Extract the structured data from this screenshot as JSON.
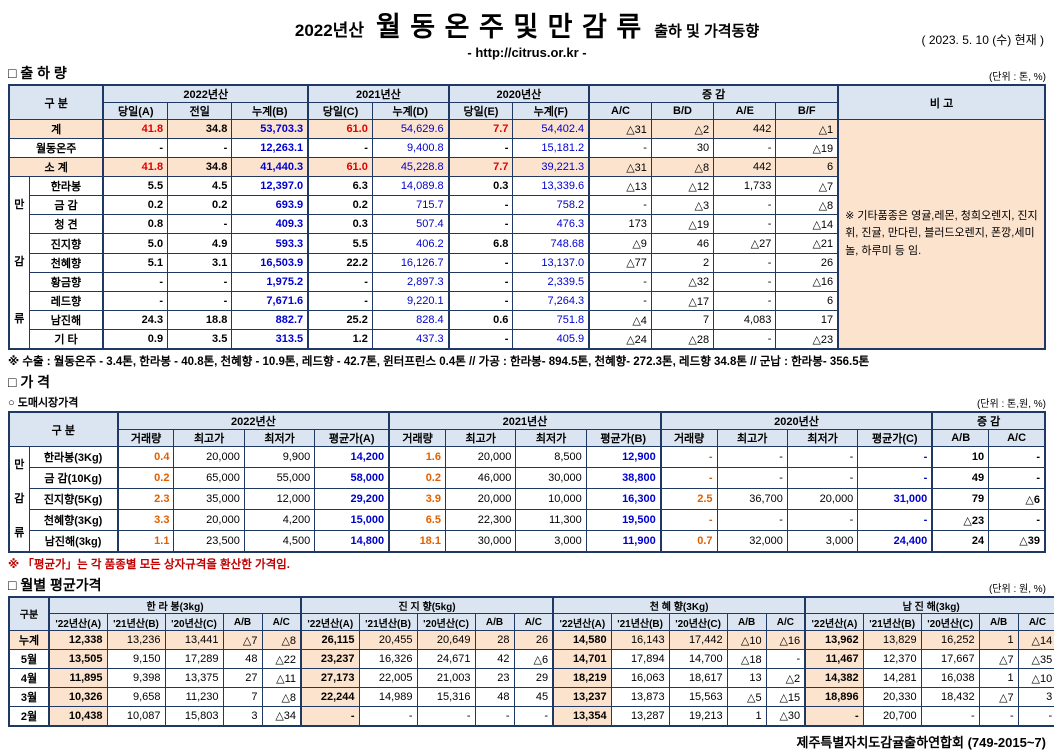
{
  "header": {
    "year_prefix": "2022년산",
    "title": "월 동 온 주 및 만 감 류",
    "subtitle": "출하 및 가격동향",
    "url": "- http://citrus.or.kr -",
    "as_of": "( 2023.  5.  10 (수) 현재 )"
  },
  "shipment": {
    "section": "□ 출 하 량",
    "unit": "(단위 : 톤, %)",
    "head": {
      "gubun": "구        분",
      "y2022": "2022년산",
      "y2021": "2021년산",
      "y2020": "2020년산",
      "incdec": "증            감",
      "note": "비  고",
      "subs": [
        "당일(A)",
        "전일",
        "누계(B)",
        "당일(C)",
        "누계(D)",
        "당일(E)",
        "누계(F)",
        "A/C",
        "B/D",
        "A/E",
        "B/F"
      ]
    },
    "group_label": "만감류",
    "rows": [
      {
        "label": "계",
        "kind": "total",
        "v": [
          "41.8",
          "34.8",
          "53,703.3",
          "61.0",
          "54,629.6",
          "7.7",
          "54,402.4",
          "△31",
          "△2",
          "442",
          "△1"
        ]
      },
      {
        "label": "월동온주",
        "kind": "plain",
        "v": [
          "-",
          "-",
          "12,263.1",
          "-",
          "9,400.8",
          "-",
          "15,181.2",
          "-",
          "30",
          "-",
          "△19"
        ]
      },
      {
        "label": "소  계",
        "kind": "total",
        "v": [
          "41.8",
          "34.8",
          "41,440.3",
          "61.0",
          "45,228.8",
          "7.7",
          "39,221.3",
          "△31",
          "△8",
          "442",
          "6"
        ]
      },
      {
        "label": "한라봉",
        "kind": "item",
        "v": [
          "5.5",
          "4.5",
          "12,397.0",
          "6.3",
          "14,089.8",
          "0.3",
          "13,339.6",
          "△13",
          "△12",
          "1,733",
          "△7"
        ]
      },
      {
        "label": "금  감",
        "kind": "item",
        "v": [
          "0.2",
          "0.2",
          "693.9",
          "0.2",
          "715.7",
          "-",
          "758.2",
          "-",
          "△3",
          "-",
          "△8"
        ]
      },
      {
        "label": "청  견",
        "kind": "item",
        "v": [
          "0.8",
          "-",
          "409.3",
          "0.3",
          "507.4",
          "-",
          "476.3",
          "173",
          "△19",
          "-",
          "△14"
        ]
      },
      {
        "label": "진지향",
        "kind": "item",
        "v": [
          "5.0",
          "4.9",
          "593.3",
          "5.5",
          "406.2",
          "6.8",
          "748.68",
          "△9",
          "46",
          "△27",
          "△21"
        ]
      },
      {
        "label": "천혜향",
        "kind": "item",
        "v": [
          "5.1",
          "3.1",
          "16,503.9",
          "22.2",
          "16,126.7",
          "-",
          "13,137.0",
          "△77",
          "2",
          "-",
          "26"
        ]
      },
      {
        "label": "황금향",
        "kind": "item",
        "v": [
          "-",
          "-",
          "1,975.2",
          "-",
          "2,897.3",
          "-",
          "2,339.5",
          "-",
          "△32",
          "-",
          "△16"
        ]
      },
      {
        "label": "레드향",
        "kind": "item",
        "v": [
          "-",
          "-",
          "7,671.6",
          "-",
          "9,220.1",
          "-",
          "7,264.3",
          "-",
          "△17",
          "-",
          "6"
        ]
      },
      {
        "label": "남진해",
        "kind": "item",
        "v": [
          "24.3",
          "18.8",
          "882.7",
          "25.2",
          "828.4",
          "0.6",
          "751.8",
          "△4",
          "7",
          "4,083",
          "17"
        ]
      },
      {
        "label": "기  타",
        "kind": "item",
        "v": [
          "0.9",
          "3.5",
          "313.5",
          "1.2",
          "437.3",
          "-",
          "405.9",
          "△24",
          "△28",
          "-",
          "△23"
        ]
      }
    ],
    "note_text": "※ 기타품종은 영귤,레몬, 청희오렌지, 진지휘, 진귤, 만다린, 블러드오렌지, 폰깡,세미놀, 하루미 등 임.",
    "footnote": "※ 수출 : 월동온주 - 3.4톤, 한라봉 - 40.8톤, 천혜향 - 10.9톤, 레드향 - 42.7톤, 윈터프린스 0.4톤 // 가공  :  한라봉- 894.5톤, 천혜향- 272.3톤, 레드향 34.8톤  //  군납 : 한라봉- 356.5톤"
  },
  "price": {
    "section": "□ 가      격",
    "sub_section": "○ 도매시장가격",
    "unit": "(단위 : 톤,원, %)",
    "head": {
      "gubun": "구      분",
      "y2022": "2022년산",
      "y2021": "2021년산",
      "y2020": "2020년산",
      "incdec": "증      감",
      "subs": [
        "거래량",
        "최고가",
        "최저가",
        "평균가(A)",
        "거래량",
        "최고가",
        "최저가",
        "평균가(B)",
        "거래량",
        "최고가",
        "최저가",
        "평균가(C)",
        "A/B",
        "A/C"
      ]
    },
    "group_label": "만감류",
    "rows": [
      {
        "label": "한라봉(3Kg)",
        "v": [
          "0.4",
          "20,000",
          "9,900",
          "14,200",
          "1.6",
          "20,000",
          "8,500",
          "12,900",
          "-",
          "-",
          "-",
          "-",
          "10",
          "-"
        ]
      },
      {
        "label": "금 감(10Kg)",
        "v": [
          "0.2",
          "65,000",
          "55,000",
          "58,000",
          "0.2",
          "46,000",
          "30,000",
          "38,800",
          "-",
          "-",
          "-",
          "-",
          "49",
          "-"
        ]
      },
      {
        "label": "진지향(5Kg)",
        "v": [
          "2.3",
          "35,000",
          "12,000",
          "29,200",
          "3.9",
          "20,000",
          "10,000",
          "16,300",
          "2.5",
          "36,700",
          "20,000",
          "31,000",
          "79",
          "△6"
        ]
      },
      {
        "label": "천혜향(3Kg)",
        "v": [
          "3.3",
          "20,000",
          "4,200",
          "15,000",
          "6.5",
          "22,300",
          "11,300",
          "19,500",
          "-",
          "-",
          "-",
          "-",
          "△23",
          "-"
        ]
      },
      {
        "label": "남진해(3kg)",
        "v": [
          "1.1",
          "23,500",
          "4,500",
          "14,800",
          "18.1",
          "30,000",
          "3,000",
          "11,900",
          "0.7",
          "32,000",
          "3,000",
          "24,400",
          "24",
          "△39"
        ]
      }
    ],
    "note": "※ 「평균가」는 각 품종별 모든 상자규격을 환산한 가격임."
  },
  "monthly": {
    "section": "□ 월별 평균가격",
    "unit": "(단위 : 원, %)",
    "gubun": "구분",
    "groups": [
      "한 라 봉(3kg)",
      "진 지 향(5kg)",
      "천 혜 향(3Kg)",
      "남 진 해(3kg)"
    ],
    "subs": [
      "'22년산(A)",
      "'21년산(B)",
      "'20년산(C)",
      "A/B",
      "A/C"
    ],
    "rows": [
      {
        "label": "누계",
        "kind": "total",
        "v": [
          [
            "12,338",
            "13,236",
            "13,441",
            "△7",
            "△8"
          ],
          [
            "26,115",
            "20,455",
            "20,649",
            "28",
            "26"
          ],
          [
            "14,580",
            "16,143",
            "17,442",
            "△10",
            "△16"
          ],
          [
            "13,962",
            "13,829",
            "16,252",
            "1",
            "△14"
          ]
        ]
      },
      {
        "label": "5월",
        "kind": "month",
        "v": [
          [
            "13,505",
            "9,150",
            "17,289",
            "48",
            "△22"
          ],
          [
            "23,237",
            "16,326",
            "24,671",
            "42",
            "△6"
          ],
          [
            "14,701",
            "17,894",
            "14,700",
            "△18",
            "-"
          ],
          [
            "11,467",
            "12,370",
            "17,667",
            "△7",
            "△35"
          ]
        ]
      },
      {
        "label": "4월",
        "kind": "month",
        "v": [
          [
            "11,895",
            "9,398",
            "13,375",
            "27",
            "△11"
          ],
          [
            "27,173",
            "22,005",
            "21,003",
            "23",
            "29"
          ],
          [
            "18,219",
            "16,063",
            "18,617",
            "13",
            "△2"
          ],
          [
            "14,382",
            "14,281",
            "16,038",
            "1",
            "△10"
          ]
        ]
      },
      {
        "label": "3월",
        "kind": "month",
        "v": [
          [
            "10,326",
            "9,658",
            "11,230",
            "7",
            "△8"
          ],
          [
            "22,244",
            "14,989",
            "15,316",
            "48",
            "45"
          ],
          [
            "13,237",
            "13,873",
            "15,563",
            "△5",
            "△15"
          ],
          [
            "18,896",
            "20,330",
            "18,432",
            "△7",
            "3"
          ]
        ]
      },
      {
        "label": "2월",
        "kind": "month",
        "v": [
          [
            "10,438",
            "10,087",
            "15,803",
            "3",
            "△34"
          ],
          [
            "-",
            "-",
            "-",
            "-",
            "-"
          ],
          [
            "13,354",
            "13,287",
            "19,213",
            "1",
            "△30"
          ],
          [
            "-",
            "20,700",
            "-",
            "-",
            "-"
          ]
        ]
      }
    ]
  },
  "footer": "제주특별자치도감귤출하연합회 (749-2015~7)"
}
